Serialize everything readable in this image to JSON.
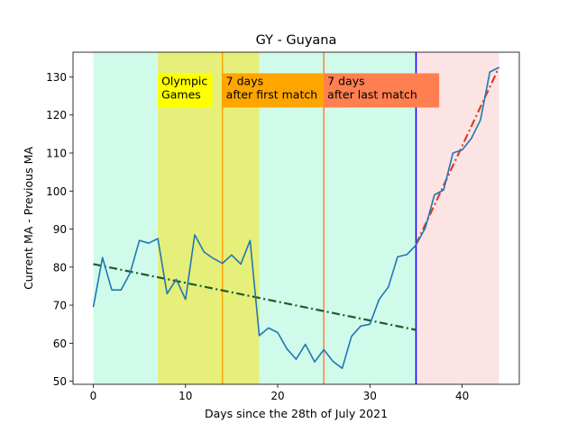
{
  "chart_data": {
    "type": "line",
    "title": "GY - Guyana",
    "xlabel": "Days since the 28th of July 2021",
    "ylabel": "Current MA - Previous MA",
    "xlim": [
      -2.2,
      46.2
    ],
    "ylim": [
      49.2,
      136.5
    ],
    "xticks": [
      0,
      10,
      20,
      30,
      40
    ],
    "yticks": [
      50,
      60,
      70,
      80,
      90,
      100,
      110,
      120,
      130
    ],
    "grid": false,
    "x": [
      0,
      1,
      2,
      3,
      4,
      5,
      6,
      7,
      8,
      9,
      10,
      11,
      12,
      13,
      14,
      15,
      16,
      17,
      18,
      19,
      20,
      21,
      22,
      23,
      24,
      25,
      26,
      27,
      28,
      29,
      30,
      31,
      32,
      33,
      34,
      35,
      36,
      37,
      38,
      39,
      40,
      41,
      42,
      43,
      44
    ],
    "series": [
      {
        "color": "#1f77b4",
        "values": [
          69.5,
          82.5,
          74.0,
          74.0,
          78.5,
          87.0,
          86.3,
          87.5,
          73.0,
          76.8,
          71.5,
          88.5,
          84.0,
          82.3,
          81.0,
          83.2,
          80.8,
          87.0,
          62.0,
          64.0,
          62.8,
          58.5,
          55.8,
          59.7,
          55.1,
          58.3,
          55.2,
          53.4,
          61.8,
          64.5,
          65.0,
          71.5,
          74.8,
          82.7,
          83.3,
          85.8,
          90.3,
          99.0,
          100.3,
          110.0,
          110.8,
          113.8,
          118.7,
          131.3,
          132.5
        ]
      }
    ],
    "trend_lines": [
      {
        "name": "pre-trend",
        "color": "#1a5c2a",
        "x": [
          0,
          35
        ],
        "y": [
          80.8,
          63.5
        ]
      },
      {
        "name": "post-trend",
        "color": "#d5412a",
        "x": [
          35,
          44
        ],
        "y": [
          86.0,
          132.5
        ]
      }
    ],
    "periods": [
      {
        "x0": 0,
        "x1": 7,
        "color": "#d0fbea"
      },
      {
        "x0": 7,
        "x1": 18,
        "color": "#e6ef7a"
      },
      {
        "x0": 18,
        "x1": 35,
        "color": "#d0fbea"
      },
      {
        "x0": 35,
        "x1": 44,
        "color": "#fde4e4"
      }
    ],
    "vlines": [
      {
        "x": 14,
        "color": "#ffa500"
      },
      {
        "x": 25,
        "color": "#ff7f50"
      },
      {
        "x": 35,
        "color": "#0000ff"
      }
    ],
    "annotations": [
      {
        "lines": [
          "Olympic",
          "Games"
        ],
        "x": 7,
        "y": 130,
        "bg": "#ffff00"
      },
      {
        "lines": [
          "7 days",
          "after first match"
        ],
        "x": 14,
        "y": 130,
        "bg": "#ffa500"
      },
      {
        "lines": [
          "7 days",
          "after last match"
        ],
        "x": 25,
        "y": 130,
        "bg": "#ff7f50"
      }
    ]
  }
}
